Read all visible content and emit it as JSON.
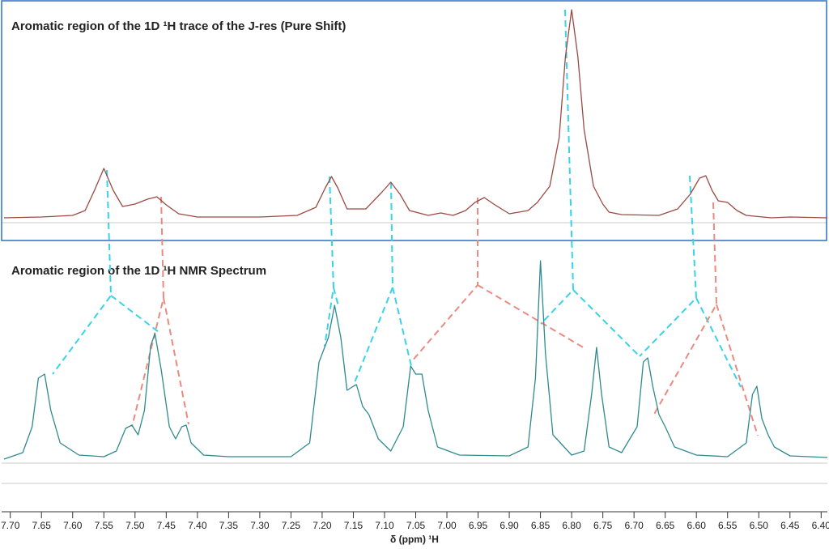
{
  "chart_data": {
    "type": "line",
    "titles": [
      "Aromatic region of the 1D ¹H trace of the J-res (Pure Shift)",
      "Aromatic region of the 1D ¹H NMR Spectrum"
    ],
    "x_label": "δ (ppm) ¹H",
    "xlim": [
      7.71,
      6.39
    ],
    "xticks": [
      {
        "value": 7.7,
        "label": "7.70"
      },
      7.65,
      {
        "value": 7.6,
        "label": "7.60"
      },
      7.55,
      {
        "value": 7.5,
        "label": "7.50"
      },
      7.45,
      {
        "value": 7.4,
        "label": "7.40"
      },
      7.35,
      {
        "value": 7.3,
        "label": "7.30"
      },
      7.25,
      {
        "value": 7.2,
        "label": "7.20"
      },
      7.15,
      {
        "value": 7.1,
        "label": "7.10"
      },
      7.05,
      {
        "value": 7.0,
        "label": "7.00"
      },
      6.95,
      {
        "value": 6.9,
        "label": "6.90"
      },
      6.85,
      {
        "value": 6.8,
        "label": "6.80"
      },
      6.75,
      {
        "value": 6.7,
        "label": "6.70"
      },
      6.65,
      {
        "value": 6.6,
        "label": "6.60"
      },
      6.55,
      {
        "value": 6.5,
        "label": "6.50"
      },
      6.45,
      {
        "value": 6.4,
        "label": "6.40"
      }
    ],
    "series": [
      {
        "color": "#9b4a43",
        "x": [
          7.71,
          7.65,
          7.6,
          7.58,
          7.565,
          7.55,
          7.535,
          7.52,
          7.5,
          7.48,
          7.465,
          7.45,
          7.43,
          7.4,
          7.3,
          7.24,
          7.21,
          7.195,
          7.185,
          7.175,
          7.16,
          7.13,
          7.105,
          7.09,
          7.075,
          7.06,
          7.03,
          7.01,
          6.99,
          6.97,
          6.955,
          6.94,
          6.925,
          6.9,
          6.87,
          6.855,
          6.835,
          6.82,
          6.81,
          6.8,
          6.79,
          6.78,
          6.765,
          6.75,
          6.74,
          6.72,
          6.66,
          6.63,
          6.61,
          6.595,
          6.585,
          6.575,
          6.565,
          6.55,
          6.535,
          6.52,
          6.48,
          6.45,
          6.39
        ],
        "values": [
          1,
          2,
          4,
          10,
          35,
          62,
          35,
          15,
          18,
          24,
          27,
          17,
          6,
          2,
          2,
          4,
          14,
          38,
          52,
          38,
          12,
          12,
          32,
          45,
          30,
          10,
          4,
          7,
          4,
          10,
          20,
          26,
          18,
          6,
          10,
          20,
          40,
          100,
          200,
          258,
          200,
          110,
          40,
          18,
          8,
          5,
          4,
          12,
          30,
          50,
          53,
          35,
          22,
          20,
          10,
          4,
          1,
          2,
          1
        ]
      },
      {
        "color": "#2f8a8f",
        "x": [
          7.71,
          7.68,
          7.665,
          7.655,
          7.645,
          7.635,
          7.62,
          7.59,
          7.55,
          7.53,
          7.515,
          7.505,
          7.495,
          7.485,
          7.475,
          7.468,
          7.458,
          7.445,
          7.435,
          7.425,
          7.418,
          7.41,
          7.39,
          7.35,
          7.25,
          7.22,
          7.205,
          7.19,
          7.18,
          7.17,
          7.16,
          7.15,
          7.145,
          7.135,
          7.125,
          7.11,
          7.09,
          7.07,
          7.058,
          7.05,
          7.04,
          7.03,
          7.015,
          6.98,
          6.9,
          6.87,
          6.858,
          6.85,
          6.842,
          6.83,
          6.8,
          6.78,
          6.768,
          6.76,
          6.752,
          6.74,
          6.72,
          6.695,
          6.685,
          6.678,
          6.67,
          6.66,
          6.65,
          6.635,
          6.6,
          6.55,
          6.52,
          6.51,
          6.503,
          6.495,
          6.485,
          6.475,
          6.45,
          6.39
        ],
        "values": [
          0,
          8,
          40,
          100,
          105,
          60,
          20,
          5,
          3,
          10,
          38,
          42,
          30,
          60,
          140,
          155,
          110,
          40,
          25,
          40,
          42,
          20,
          5,
          3,
          3,
          20,
          120,
          150,
          190,
          150,
          85,
          90,
          92,
          65,
          55,
          25,
          10,
          40,
          115,
          105,
          105,
          60,
          15,
          5,
          4,
          15,
          100,
          245,
          130,
          30,
          5,
          10,
          80,
          138,
          80,
          15,
          8,
          40,
          120,
          125,
          90,
          55,
          40,
          15,
          5,
          3,
          20,
          80,
          90,
          50,
          30,
          15,
          4,
          2
        ]
      }
    ]
  }
}
